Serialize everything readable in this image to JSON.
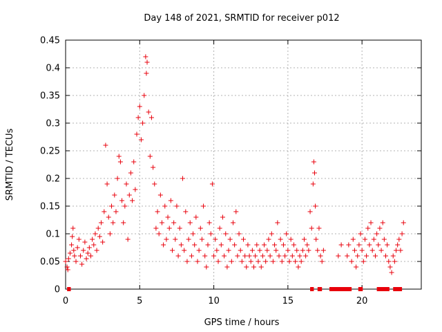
{
  "chart_data": {
    "type": "scatter",
    "title": "Day 148 of 2021, SRMTID for receiver p012",
    "xlabel": "GPS time / hours",
    "ylabel": "SRMTID / TECUs",
    "xlim": [
      0,
      24
    ],
    "ylim": [
      0,
      0.45
    ],
    "x_ticks": [
      0,
      5,
      10,
      15,
      20
    ],
    "y_ticks": [
      0,
      0.05,
      0.1,
      0.15,
      0.2,
      0.25,
      0.3,
      0.35,
      0.4,
      0.45
    ],
    "x_tick_labels": [
      "0",
      "5",
      "10",
      "15",
      "20"
    ],
    "y_tick_labels": [
      "0",
      "0.05",
      "0.1",
      "0.15",
      "0.2",
      "0.25",
      "0.3",
      "0.35",
      "0.4",
      "0.45"
    ],
    "grid": true,
    "marker": "+",
    "color": "#e8000b",
    "series": [
      {
        "name": "SRMTID",
        "points": [
          [
            0.0,
            0.05
          ],
          [
            0.1,
            0.04
          ],
          [
            0.15,
            0.035
          ],
          [
            0.2,
            0.055
          ],
          [
            0.3,
            0.065
          ],
          [
            0.4,
            0.08
          ],
          [
            0.45,
            0.095
          ],
          [
            0.5,
            0.11
          ],
          [
            0.55,
            0.07
          ],
          [
            0.6,
            0.06
          ],
          [
            0.7,
            0.05
          ],
          [
            0.8,
            0.075
          ],
          [
            0.9,
            0.09
          ],
          [
            1.0,
            0.06
          ],
          [
            1.1,
            0.045
          ],
          [
            1.2,
            0.07
          ],
          [
            1.3,
            0.085
          ],
          [
            1.4,
            0.055
          ],
          [
            1.5,
            0.065
          ],
          [
            1.6,
            0.075
          ],
          [
            1.7,
            0.06
          ],
          [
            1.8,
            0.09
          ],
          [
            1.9,
            0.08
          ],
          [
            2.0,
            0.1
          ],
          [
            2.1,
            0.07
          ],
          [
            2.2,
            0.11
          ],
          [
            2.3,
            0.095
          ],
          [
            2.4,
            0.12
          ],
          [
            2.5,
            0.085
          ],
          [
            2.6,
            0.14
          ],
          [
            2.7,
            0.26
          ],
          [
            2.8,
            0.19
          ],
          [
            2.9,
            0.13
          ],
          [
            3.0,
            0.1
          ],
          [
            3.1,
            0.15
          ],
          [
            3.2,
            0.12
          ],
          [
            3.3,
            0.17
          ],
          [
            3.4,
            0.14
          ],
          [
            3.5,
            0.2
          ],
          [
            3.6,
            0.24
          ],
          [
            3.7,
            0.23
          ],
          [
            3.8,
            0.16
          ],
          [
            3.9,
            0.12
          ],
          [
            4.0,
            0.15
          ],
          [
            4.1,
            0.19
          ],
          [
            4.2,
            0.09
          ],
          [
            4.3,
            0.17
          ],
          [
            4.4,
            0.21
          ],
          [
            4.5,
            0.16
          ],
          [
            4.6,
            0.23
          ],
          [
            4.7,
            0.18
          ],
          [
            4.8,
            0.28
          ],
          [
            4.9,
            0.31
          ],
          [
            5.0,
            0.33
          ],
          [
            5.1,
            0.27
          ],
          [
            5.2,
            0.3
          ],
          [
            5.3,
            0.35
          ],
          [
            5.4,
            0.42
          ],
          [
            5.45,
            0.39
          ],
          [
            5.5,
            0.41
          ],
          [
            5.6,
            0.32
          ],
          [
            5.7,
            0.24
          ],
          [
            5.8,
            0.31
          ],
          [
            5.9,
            0.22
          ],
          [
            6.0,
            0.19
          ],
          [
            6.1,
            0.11
          ],
          [
            6.2,
            0.14
          ],
          [
            6.3,
            0.1
          ],
          [
            6.4,
            0.17
          ],
          [
            6.5,
            0.12
          ],
          [
            6.6,
            0.08
          ],
          [
            6.7,
            0.15
          ],
          [
            6.8,
            0.09
          ],
          [
            6.9,
            0.13
          ],
          [
            7.0,
            0.11
          ],
          [
            7.1,
            0.16
          ],
          [
            7.2,
            0.07
          ],
          [
            7.3,
            0.12
          ],
          [
            7.4,
            0.09
          ],
          [
            7.5,
            0.15
          ],
          [
            7.6,
            0.06
          ],
          [
            7.7,
            0.11
          ],
          [
            7.8,
            0.08
          ],
          [
            7.9,
            0.2
          ],
          [
            8.0,
            0.07
          ],
          [
            8.1,
            0.14
          ],
          [
            8.2,
            0.05
          ],
          [
            8.3,
            0.09
          ],
          [
            8.4,
            0.12
          ],
          [
            8.5,
            0.06
          ],
          [
            8.6,
            0.1
          ],
          [
            8.7,
            0.08
          ],
          [
            8.8,
            0.13
          ],
          [
            8.9,
            0.05
          ],
          [
            9.0,
            0.07
          ],
          [
            9.1,
            0.11
          ],
          [
            9.2,
            0.09
          ],
          [
            9.3,
            0.15
          ],
          [
            9.4,
            0.06
          ],
          [
            9.5,
            0.04
          ],
          [
            9.6,
            0.08
          ],
          [
            9.7,
            0.12
          ],
          [
            9.8,
            0.1
          ],
          [
            9.9,
            0.19
          ],
          [
            10.0,
            0.06
          ],
          [
            10.1,
            0.09
          ],
          [
            10.2,
            0.07
          ],
          [
            10.3,
            0.05
          ],
          [
            10.4,
            0.11
          ],
          [
            10.5,
            0.08
          ],
          [
            10.6,
            0.13
          ],
          [
            10.7,
            0.06
          ],
          [
            10.8,
            0.1
          ],
          [
            10.9,
            0.04
          ],
          [
            11.0,
            0.07
          ],
          [
            11.1,
            0.09
          ],
          [
            11.2,
            0.05
          ],
          [
            11.3,
            0.12
          ],
          [
            11.4,
            0.08
          ],
          [
            11.5,
            0.14
          ],
          [
            11.6,
            0.06
          ],
          [
            11.7,
            0.1
          ],
          [
            11.8,
            0.07
          ],
          [
            11.9,
            0.05
          ],
          [
            12.0,
            0.09
          ],
          [
            12.1,
            0.06
          ],
          [
            12.2,
            0.04
          ],
          [
            12.3,
            0.08
          ],
          [
            12.4,
            0.06
          ],
          [
            12.5,
            0.05
          ],
          [
            12.6,
            0.07
          ],
          [
            12.7,
            0.04
          ],
          [
            12.8,
            0.06
          ],
          [
            12.9,
            0.08
          ],
          [
            13.0,
            0.05
          ],
          [
            13.1,
            0.07
          ],
          [
            13.2,
            0.04
          ],
          [
            13.3,
            0.06
          ],
          [
            13.4,
            0.08
          ],
          [
            13.5,
            0.05
          ],
          [
            13.6,
            0.07
          ],
          [
            13.7,
            0.09
          ],
          [
            13.8,
            0.06
          ],
          [
            13.9,
            0.1
          ],
          [
            14.0,
            0.05
          ],
          [
            14.1,
            0.08
          ],
          [
            14.2,
            0.07
          ],
          [
            14.3,
            0.12
          ],
          [
            14.4,
            0.06
          ],
          [
            14.5,
            0.09
          ],
          [
            14.6,
            0.05
          ],
          [
            14.7,
            0.08
          ],
          [
            14.8,
            0.06
          ],
          [
            14.9,
            0.1
          ],
          [
            15.0,
            0.07
          ],
          [
            15.1,
            0.05
          ],
          [
            15.2,
            0.09
          ],
          [
            15.3,
            0.06
          ],
          [
            15.4,
            0.08
          ],
          [
            15.5,
            0.05
          ],
          [
            15.6,
            0.07
          ],
          [
            15.7,
            0.04
          ],
          [
            15.8,
            0.06
          ],
          [
            15.9,
            0.05
          ],
          [
            16.0,
            0.07
          ],
          [
            16.1,
            0.09
          ],
          [
            16.2,
            0.06
          ],
          [
            16.3,
            0.08
          ],
          [
            16.4,
            0.07
          ],
          [
            16.5,
            0.14
          ],
          [
            16.6,
            0.11
          ],
          [
            16.7,
            0.19
          ],
          [
            16.75,
            0.23
          ],
          [
            16.8,
            0.21
          ],
          [
            16.85,
            0.15
          ],
          [
            16.9,
            0.09
          ],
          [
            17.0,
            0.07
          ],
          [
            17.1,
            0.11
          ],
          [
            17.2,
            0.06
          ],
          [
            17.3,
            0.05
          ],
          [
            17.4,
            0.07
          ],
          [
            18.4,
            0.06
          ],
          [
            18.6,
            0.08
          ],
          [
            19.0,
            0.06
          ],
          [
            19.1,
            0.08
          ],
          [
            19.3,
            0.05
          ],
          [
            19.4,
            0.09
          ],
          [
            19.5,
            0.07
          ],
          [
            19.6,
            0.04
          ],
          [
            19.7,
            0.06
          ],
          [
            19.8,
            0.08
          ],
          [
            19.9,
            0.1
          ],
          [
            20.0,
            0.07
          ],
          [
            20.1,
            0.05
          ],
          [
            20.2,
            0.09
          ],
          [
            20.3,
            0.06
          ],
          [
            20.4,
            0.11
          ],
          [
            20.5,
            0.08
          ],
          [
            20.6,
            0.12
          ],
          [
            20.7,
            0.07
          ],
          [
            20.8,
            0.09
          ],
          [
            20.9,
            0.06
          ],
          [
            21.0,
            0.1
          ],
          [
            21.1,
            0.08
          ],
          [
            21.2,
            0.11
          ],
          [
            21.3,
            0.07
          ],
          [
            21.4,
            0.12
          ],
          [
            21.5,
            0.09
          ],
          [
            21.6,
            0.06
          ],
          [
            21.7,
            0.08
          ],
          [
            21.8,
            0.05
          ],
          [
            21.9,
            0.04
          ],
          [
            22.0,
            0.03
          ],
          [
            22.1,
            0.06
          ],
          [
            22.2,
            0.05
          ],
          [
            22.3,
            0.07
          ],
          [
            22.4,
            0.08
          ],
          [
            22.5,
            0.09
          ],
          [
            22.6,
            0.07
          ],
          [
            22.7,
            0.1
          ],
          [
            22.8,
            0.12
          ]
        ]
      }
    ],
    "gap_markers": [
      [
        0.1,
        0.35
      ],
      [
        16.5,
        16.75
      ],
      [
        17.0,
        17.3
      ],
      [
        17.8,
        19.3
      ],
      [
        19.75,
        20.05
      ],
      [
        21.0,
        21.85
      ],
      [
        22.1,
        22.7
      ]
    ]
  }
}
